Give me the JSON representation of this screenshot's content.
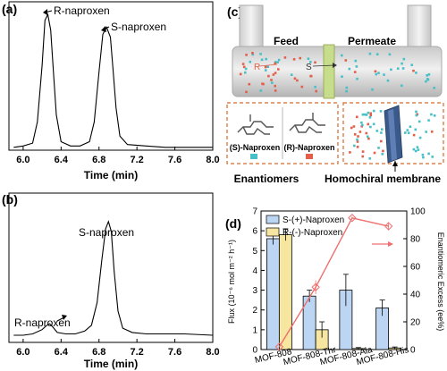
{
  "panel_a": {
    "letter": "(a)",
    "xlabel": "Time (min)",
    "xticks": [
      "6.0",
      "6.4",
      "6.8",
      "7.2",
      "7.6",
      "8.0"
    ],
    "annotations": [
      "R-naproxen",
      "S-naproxen"
    ]
  },
  "panel_b": {
    "letter": "(b)",
    "xlabel": "Time (min)",
    "xticks": [
      "6.0",
      "6.4",
      "6.8",
      "7.2",
      "7.6",
      "8.0"
    ],
    "annotations": [
      "S-naproxen",
      "R-naproxen"
    ]
  },
  "panel_c": {
    "letter": "(c)",
    "feed_label": "Feed",
    "permeate_label": "Permeate",
    "r_label": "R",
    "s_label": "S",
    "s_box_label": "(S)-Naproxen",
    "r_box_label": "(R)-Naproxen",
    "enantiomers_label": "Enantiomers",
    "membrane_label": "Homochiral membrane",
    "colors": {
      "s_dot": "#48c0c8",
      "r_dot": "#e2604a",
      "dashed_box": "#d4692a",
      "tube": "#d9d9d9"
    }
  },
  "panel_d": {
    "letter": "(d)",
    "legend": [
      "S-(+)-Naproxen",
      "R-(-)-Naproxen"
    ],
    "ylabel_left": "Flux (10⁻⁶ mol m⁻² h⁻¹)",
    "ylabel_right": "Enantiomeric Excess (ee%)",
    "yticks_left": [
      "0",
      "1",
      "2",
      "3",
      "4",
      "5",
      "6",
      "7"
    ],
    "yticks_right": [
      "0",
      "20",
      "40",
      "60",
      "80",
      "100"
    ],
    "colors": {
      "s_bar": "#bcd5f2",
      "r_bar": "#f6e6a0",
      "line": "#ee6f6f"
    }
  },
  "chart_data": [
    {
      "type": "line",
      "title": "",
      "xlabel": "Time (min)",
      "ylabel": "",
      "xlim": [
        5.85,
        8.0
      ],
      "ylim": [
        0,
        1.05
      ],
      "y_ticks_shown": false,
      "x": [
        5.9,
        6.0,
        6.1,
        6.15,
        6.2,
        6.23,
        6.26,
        6.29,
        6.32,
        6.35,
        6.4,
        6.5,
        6.6,
        6.7,
        6.75,
        6.8,
        6.84,
        6.88,
        6.92,
        6.95,
        6.98,
        7.02,
        7.1,
        7.3,
        7.5,
        7.7,
        8.0
      ],
      "series": [
        {
          "values": [
            0.02,
            0.03,
            0.05,
            0.2,
            0.6,
            0.92,
            0.96,
            0.85,
            0.55,
            0.25,
            0.06,
            0.03,
            0.03,
            0.06,
            0.2,
            0.55,
            0.82,
            0.87,
            0.8,
            0.55,
            0.3,
            0.1,
            0.04,
            0.03,
            0.02,
            0.02,
            0.02
          ]
        }
      ],
      "annotations": [
        {
          "text": "R-naproxen",
          "x": 6.26,
          "y": 0.96
        },
        {
          "text": "S-naproxen",
          "x": 6.88,
          "y": 0.87
        }
      ]
    },
    {
      "type": "line",
      "title": "",
      "xlabel": "Time (min)",
      "ylabel": "",
      "xlim": [
        5.85,
        8.0
      ],
      "ylim": [
        0,
        1.05
      ],
      "y_ticks_shown": false,
      "x": [
        5.9,
        6.0,
        6.1,
        6.2,
        6.25,
        6.28,
        6.31,
        6.36,
        6.45,
        6.55,
        6.65,
        6.72,
        6.78,
        6.83,
        6.87,
        6.9,
        6.93,
        6.96,
        7.0,
        7.05,
        7.15,
        7.3,
        7.5,
        7.7,
        8.0
      ],
      "series": [
        {
          "values": [
            0.05,
            0.05,
            0.06,
            0.09,
            0.12,
            0.13,
            0.11,
            0.07,
            0.06,
            0.06,
            0.08,
            0.12,
            0.28,
            0.58,
            0.8,
            0.85,
            0.78,
            0.5,
            0.22,
            0.1,
            0.07,
            0.06,
            0.06,
            0.06,
            0.05
          ]
        }
      ],
      "annotations": [
        {
          "text": "S-naproxen",
          "x": 6.9,
          "y": 0.85
        },
        {
          "text": "R-naproxen",
          "x": 6.28,
          "y": 0.13
        }
      ]
    },
    {
      "type": "bar",
      "title": "",
      "categories": [
        "MOF-808",
        "MOF-808-Thr",
        "MOF-808-Ala",
        "MOF-808-His"
      ],
      "series": [
        {
          "name": "S-(+)-Naproxen",
          "values": [
            5.6,
            2.7,
            3.0,
            2.1
          ],
          "errors": [
            0.3,
            0.3,
            0.8,
            0.4
          ]
        },
        {
          "name": "R-(-)-Naproxen",
          "values": [
            5.8,
            1.0,
            0.05,
            0.08
          ],
          "errors": [
            0.3,
            0.4,
            0.05,
            0.05
          ]
        }
      ],
      "line_series": {
        "axis": "right",
        "values": [
          2,
          45,
          95,
          89
        ],
        "errors": [
          0,
          5,
          1,
          3
        ]
      },
      "xlabel": "",
      "ylabel": "Flux (10⁻⁶ mol m⁻² h⁻¹)",
      "ylabel_right": "Enantiomeric Excess (ee%)",
      "ylim": [
        0,
        7
      ],
      "ylim_right": [
        0,
        100
      ],
      "legend_position": "top-left"
    }
  ]
}
